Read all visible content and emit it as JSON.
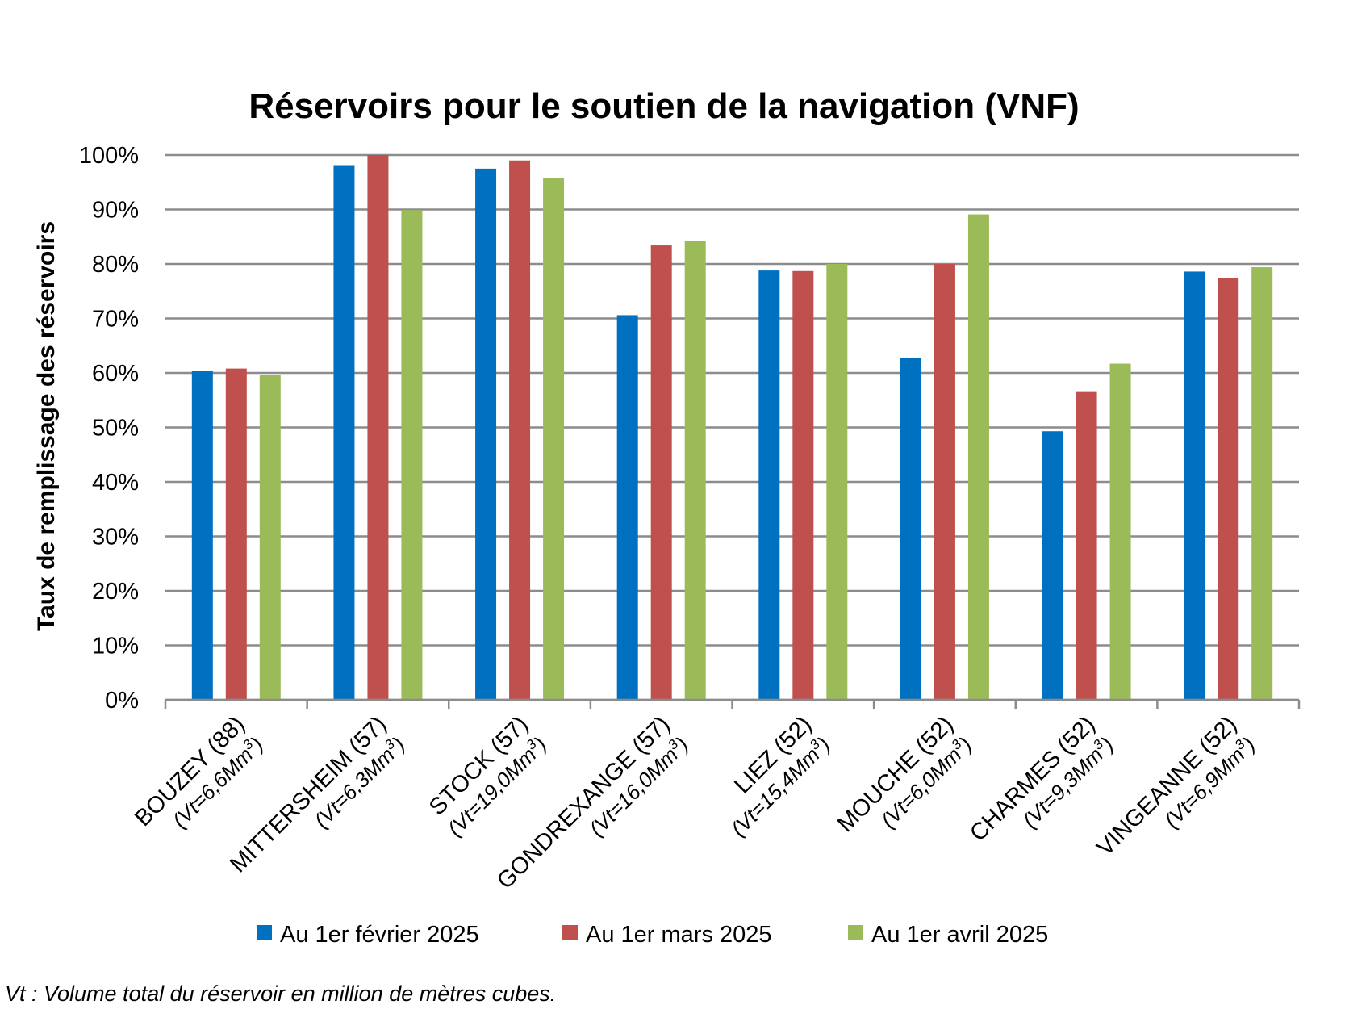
{
  "chart_data": {
    "type": "bar",
    "title": "Réservoirs pour le soutien de la navigation (VNF)",
    "ylabel": "Taux de remplissage des réservoirs",
    "xlabel": "",
    "ylim": [
      0,
      100
    ],
    "y_ticks": [
      "0%",
      "10%",
      "20%",
      "30%",
      "40%",
      "50%",
      "60%",
      "70%",
      "80%",
      "90%",
      "100%"
    ],
    "grid": true,
    "legend_position": "bottom",
    "categories": [
      {
        "name": "BOUZEY (88)",
        "vt": "(Vt=6,6Mm",
        "vt_sup": "3",
        "vt_end": ")"
      },
      {
        "name": "MITTERSHEIM (57)",
        "vt": "(Vt=6,3Mm",
        "vt_sup": "3",
        "vt_end": ")"
      },
      {
        "name": "STOCK (57)",
        "vt": "(Vt=19,0Mm",
        "vt_sup": "3",
        "vt_end": ")"
      },
      {
        "name": "GONDREXANGE (57)",
        "vt": "(Vt=16,0Mm",
        "vt_sup": "3",
        "vt_end": ")"
      },
      {
        "name": "LIEZ (52)",
        "vt": "(Vt=15,4Mm",
        "vt_sup": "3",
        "vt_end": ")"
      },
      {
        "name": "MOUCHE (52)",
        "vt": "(Vt=6,0Mm",
        "vt_sup": "3",
        "vt_end": ")"
      },
      {
        "name": "CHARMES (52)",
        "vt": "(Vt=9,3Mm",
        "vt_sup": "3",
        "vt_end": ")"
      },
      {
        "name": "VINGEANNE (52)",
        "vt": "(Vt=6,9Mm",
        "vt_sup": "3",
        "vt_end": ")"
      }
    ],
    "series": [
      {
        "name": "Au 1er février 2025",
        "color": "#0070C0",
        "values": [
          60.3,
          98.0,
          97.5,
          70.6,
          78.8,
          62.7,
          49.3,
          78.6
        ]
      },
      {
        "name": "Au 1er mars 2025",
        "color": "#C0504D",
        "values": [
          60.8,
          100.0,
          99.0,
          83.4,
          78.7,
          80.0,
          56.5,
          77.4
        ]
      },
      {
        "name": "Au 1er avril 2025",
        "color": "#9BBB59",
        "values": [
          59.7,
          89.9,
          95.8,
          84.3,
          80.0,
          89.1,
          61.7,
          79.4
        ]
      }
    ],
    "footnote": "Vt : Volume total du réservoir en million de mètres cubes."
  }
}
